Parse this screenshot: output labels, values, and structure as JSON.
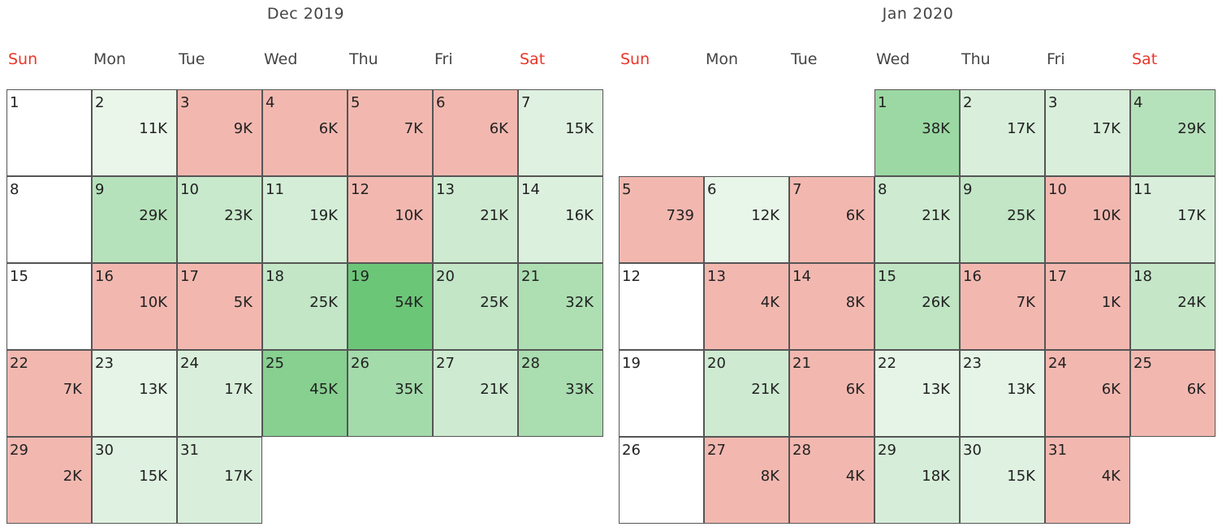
{
  "chart_data": {
    "type": "heatmap",
    "weekdays": [
      "Sun",
      "Mon",
      "Tue",
      "Wed",
      "Thu",
      "Fri",
      "Sat"
    ],
    "weekend_color": "#e8362b",
    "low_color": "#f2b8b0",
    "high_color_scale": [
      "#eef7ee",
      "#6cc678"
    ],
    "months": [
      {
        "title": "Dec 2019",
        "first_weekday": 0,
        "days": [
          {
            "day": "1",
            "label": "",
            "value": null
          },
          {
            "day": "2",
            "label": "11K",
            "value": 11000
          },
          {
            "day": "3",
            "label": "9K",
            "value": 9000
          },
          {
            "day": "4",
            "label": "6K",
            "value": 6000
          },
          {
            "day": "5",
            "label": "7K",
            "value": 7000
          },
          {
            "day": "6",
            "label": "6K",
            "value": 6000
          },
          {
            "day": "7",
            "label": "15K",
            "value": 15000
          },
          {
            "day": "8",
            "label": "",
            "value": null
          },
          {
            "day": "9",
            "label": "29K",
            "value": 29000
          },
          {
            "day": "10",
            "label": "23K",
            "value": 23000
          },
          {
            "day": "11",
            "label": "19K",
            "value": 19000
          },
          {
            "day": "12",
            "label": "10K",
            "value": 10000
          },
          {
            "day": "13",
            "label": "21K",
            "value": 21000
          },
          {
            "day": "14",
            "label": "16K",
            "value": 16000
          },
          {
            "day": "15",
            "label": "",
            "value": null
          },
          {
            "day": "16",
            "label": "10K",
            "value": 10000
          },
          {
            "day": "17",
            "label": "5K",
            "value": 5000
          },
          {
            "day": "18",
            "label": "25K",
            "value": 25000
          },
          {
            "day": "19",
            "label": "54K",
            "value": 54000
          },
          {
            "day": "20",
            "label": "25K",
            "value": 25000
          },
          {
            "day": "21",
            "label": "32K",
            "value": 32000
          },
          {
            "day": "22",
            "label": "7K",
            "value": 7000
          },
          {
            "day": "23",
            "label": "13K",
            "value": 13000
          },
          {
            "day": "24",
            "label": "17K",
            "value": 17000
          },
          {
            "day": "25",
            "label": "45K",
            "value": 45000
          },
          {
            "day": "26",
            "label": "35K",
            "value": 35000
          },
          {
            "day": "27",
            "label": "21K",
            "value": 21000
          },
          {
            "day": "28",
            "label": "33K",
            "value": 33000
          },
          {
            "day": "29",
            "label": "2K",
            "value": 2000
          },
          {
            "day": "30",
            "label": "15K",
            "value": 15000
          },
          {
            "day": "31",
            "label": "17K",
            "value": 17000
          }
        ]
      },
      {
        "title": "Jan 2020",
        "first_weekday": 3,
        "days": [
          {
            "day": "1",
            "label": "38K",
            "value": 38000
          },
          {
            "day": "2",
            "label": "17K",
            "value": 17000
          },
          {
            "day": "3",
            "label": "17K",
            "value": 17000
          },
          {
            "day": "4",
            "label": "29K",
            "value": 29000
          },
          {
            "day": "5",
            "label": "739",
            "value": 739
          },
          {
            "day": "6",
            "label": "12K",
            "value": 12000
          },
          {
            "day": "7",
            "label": "6K",
            "value": 6000
          },
          {
            "day": "8",
            "label": "21K",
            "value": 21000
          },
          {
            "day": "9",
            "label": "25K",
            "value": 25000
          },
          {
            "day": "10",
            "label": "10K",
            "value": 10000
          },
          {
            "day": "11",
            "label": "17K",
            "value": 17000
          },
          {
            "day": "12",
            "label": "",
            "value": null
          },
          {
            "day": "13",
            "label": "4K",
            "value": 4000
          },
          {
            "day": "14",
            "label": "8K",
            "value": 8000
          },
          {
            "day": "15",
            "label": "26K",
            "value": 26000
          },
          {
            "day": "16",
            "label": "7K",
            "value": 7000
          },
          {
            "day": "17",
            "label": "1K",
            "value": 1000
          },
          {
            "day": "18",
            "label": "24K",
            "value": 24000
          },
          {
            "day": "19",
            "label": "",
            "value": null
          },
          {
            "day": "20",
            "label": "21K",
            "value": 21000
          },
          {
            "day": "21",
            "label": "6K",
            "value": 6000
          },
          {
            "day": "22",
            "label": "13K",
            "value": 13000
          },
          {
            "day": "23",
            "label": "13K",
            "value": 13000
          },
          {
            "day": "24",
            "label": "6K",
            "value": 6000
          },
          {
            "day": "25",
            "label": "6K",
            "value": 6000
          },
          {
            "day": "26",
            "label": "",
            "value": null
          },
          {
            "day": "27",
            "label": "8K",
            "value": 8000
          },
          {
            "day": "28",
            "label": "4K",
            "value": 4000
          },
          {
            "day": "29",
            "label": "18K",
            "value": 18000
          },
          {
            "day": "30",
            "label": "15K",
            "value": 15000
          },
          {
            "day": "31",
            "label": "4K",
            "value": 4000
          }
        ]
      }
    ]
  }
}
